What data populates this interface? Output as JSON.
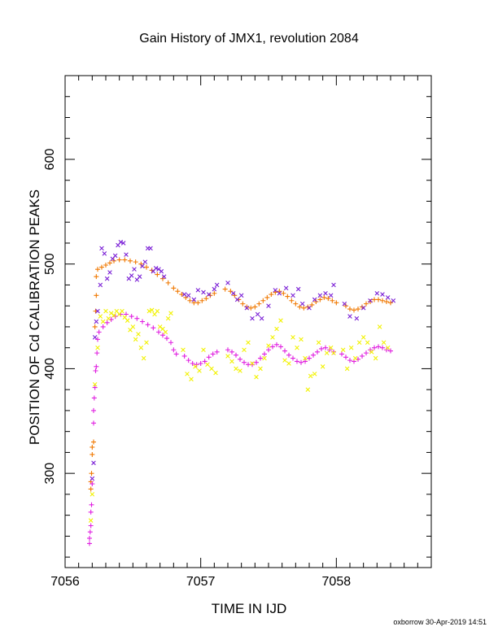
{
  "chart_data": {
    "type": "scatter",
    "title": "Gain History of JMX1, revolution 2084",
    "xlabel": "TIME IN IJD",
    "ylabel": "POSITION OF Cd CALIBRATION PEAKS",
    "xlim": [
      7056,
      7058.7
    ],
    "ylim": [
      210,
      680
    ],
    "x_ticks": [
      7056,
      7057,
      7058
    ],
    "y_ticks": [
      300,
      400,
      500,
      600
    ],
    "grid": false,
    "legend": "none",
    "series": [
      {
        "marker": "plus",
        "color": "#f07800",
        "points": [
          [
            7056.19,
            285
          ],
          [
            7056.19,
            292
          ],
          [
            7056.195,
            300
          ],
          [
            7056.2,
            318
          ],
          [
            7056.2,
            325
          ],
          [
            7056.21,
            330
          ],
          [
            7056.22,
            440
          ],
          [
            7056.225,
            455
          ],
          [
            7056.23,
            470
          ],
          [
            7056.23,
            488
          ],
          [
            7056.24,
            495
          ],
          [
            7056.27,
            497
          ],
          [
            7056.3,
            499
          ],
          [
            7056.33,
            501
          ],
          [
            7056.36,
            503
          ],
          [
            7056.4,
            504
          ],
          [
            7056.44,
            504
          ],
          [
            7056.48,
            503
          ],
          [
            7056.52,
            502
          ],
          [
            7056.56,
            500
          ],
          [
            7056.6,
            497
          ],
          [
            7056.64,
            494
          ],
          [
            7056.68,
            490
          ],
          [
            7056.72,
            486
          ],
          [
            7056.76,
            482
          ],
          [
            7056.8,
            477
          ],
          [
            7056.83,
            474
          ],
          [
            7056.86,
            471
          ],
          [
            7056.89,
            468
          ],
          [
            7056.92,
            465
          ],
          [
            7056.95,
            463
          ],
          [
            7056.98,
            463
          ],
          [
            7057.01,
            465
          ],
          [
            7057.04,
            467
          ],
          [
            7057.07,
            470
          ],
          [
            7057.1,
            472
          ],
          [
            7057.18,
            476
          ],
          [
            7057.22,
            474
          ],
          [
            7057.25,
            470
          ],
          [
            7057.28,
            466
          ],
          [
            7057.31,
            462
          ],
          [
            7057.34,
            459
          ],
          [
            7057.37,
            458
          ],
          [
            7057.4,
            459
          ],
          [
            7057.43,
            462
          ],
          [
            7057.46,
            465
          ],
          [
            7057.49,
            468
          ],
          [
            7057.52,
            471
          ],
          [
            7057.55,
            473
          ],
          [
            7057.58,
            474
          ],
          [
            7057.61,
            472
          ],
          [
            7057.64,
            469
          ],
          [
            7057.67,
            465
          ],
          [
            7057.7,
            462
          ],
          [
            7057.73,
            459
          ],
          [
            7057.76,
            458
          ],
          [
            7057.79,
            459
          ],
          [
            7057.82,
            461
          ],
          [
            7057.85,
            464
          ],
          [
            7057.88,
            466
          ],
          [
            7057.91,
            468
          ],
          [
            7057.94,
            467
          ],
          [
            7057.97,
            465
          ],
          [
            7058,
            463
          ],
          [
            7058.07,
            460
          ],
          [
            7058.1,
            457
          ],
          [
            7058.13,
            456
          ],
          [
            7058.16,
            457
          ],
          [
            7058.19,
            459
          ],
          [
            7058.22,
            462
          ],
          [
            7058.25,
            464
          ],
          [
            7058.28,
            466
          ],
          [
            7058.31,
            466
          ],
          [
            7058.34,
            465
          ],
          [
            7058.37,
            464
          ],
          [
            7058.4,
            463
          ]
        ]
      },
      {
        "marker": "cross",
        "color": "#7a1fd6",
        "points": [
          [
            7056.2,
            295
          ],
          [
            7056.21,
            310
          ],
          [
            7056.22,
            430
          ],
          [
            7056.23,
            445
          ],
          [
            7056.24,
            455
          ],
          [
            7056.26,
            480
          ],
          [
            7056.27,
            515
          ],
          [
            7056.29,
            510
          ],
          [
            7056.31,
            486
          ],
          [
            7056.33,
            492
          ],
          [
            7056.35,
            505
          ],
          [
            7056.37,
            508
          ],
          [
            7056.39,
            518
          ],
          [
            7056.41,
            521
          ],
          [
            7056.43,
            520
          ],
          [
            7056.45,
            509
          ],
          [
            7056.47,
            486
          ],
          [
            7056.49,
            489
          ],
          [
            7056.51,
            495
          ],
          [
            7056.53,
            485
          ],
          [
            7056.55,
            488
          ],
          [
            7056.57,
            498
          ],
          [
            7056.59,
            502
          ],
          [
            7056.61,
            515
          ],
          [
            7056.63,
            515
          ],
          [
            7056.65,
            493
          ],
          [
            7056.67,
            496
          ],
          [
            7056.69,
            495
          ],
          [
            7056.71,
            493
          ],
          [
            7056.73,
            488
          ],
          [
            7056.88,
            471
          ],
          [
            7056.91,
            470
          ],
          [
            7056.95,
            466
          ],
          [
            7056.98,
            475
          ],
          [
            7057.02,
            473
          ],
          [
            7057.06,
            471
          ],
          [
            7057.1,
            476
          ],
          [
            7057.12,
            480
          ],
          [
            7057.2,
            482
          ],
          [
            7057.24,
            472
          ],
          [
            7057.27,
            466
          ],
          [
            7057.3,
            470
          ],
          [
            7057.34,
            458
          ],
          [
            7057.38,
            448
          ],
          [
            7057.42,
            452
          ],
          [
            7057.45,
            448
          ],
          [
            7057.5,
            460
          ],
          [
            7057.55,
            475
          ],
          [
            7057.58,
            472
          ],
          [
            7057.63,
            477
          ],
          [
            7057.68,
            470
          ],
          [
            7057.72,
            476
          ],
          [
            7057.75,
            462
          ],
          [
            7057.8,
            458
          ],
          [
            7057.84,
            466
          ],
          [
            7057.88,
            470
          ],
          [
            7057.92,
            472
          ],
          [
            7057.96,
            470
          ],
          [
            7057.98,
            480
          ],
          [
            7058.06,
            462
          ],
          [
            7058.1,
            450
          ],
          [
            7058.15,
            448
          ],
          [
            7058.2,
            458
          ],
          [
            7058.25,
            465
          ],
          [
            7058.3,
            472
          ],
          [
            7058.34,
            471
          ],
          [
            7058.38,
            468
          ],
          [
            7058.42,
            465
          ]
        ]
      },
      {
        "marker": "plus",
        "color": "#e020e0",
        "points": [
          [
            7056.18,
            233
          ],
          [
            7056.18,
            238
          ],
          [
            7056.185,
            244
          ],
          [
            7056.19,
            250
          ],
          [
            7056.19,
            263
          ],
          [
            7056.195,
            270
          ],
          [
            7056.2,
            290
          ],
          [
            7056.21,
            348
          ],
          [
            7056.21,
            360
          ],
          [
            7056.215,
            372
          ],
          [
            7056.22,
            382
          ],
          [
            7056.225,
            398
          ],
          [
            7056.23,
            402
          ],
          [
            7056.235,
            415
          ],
          [
            7056.24,
            428
          ],
          [
            7056.25,
            435
          ],
          [
            7056.28,
            440
          ],
          [
            7056.31,
            444
          ],
          [
            7056.34,
            447
          ],
          [
            7056.37,
            450
          ],
          [
            7056.41,
            452
          ],
          [
            7056.45,
            452
          ],
          [
            7056.49,
            450
          ],
          [
            7056.53,
            448
          ],
          [
            7056.57,
            445
          ],
          [
            7056.61,
            442
          ],
          [
            7056.65,
            439
          ],
          [
            7056.69,
            435
          ],
          [
            7056.72,
            432
          ],
          [
            7056.75,
            429
          ],
          [
            7056.78,
            425
          ],
          [
            7056.8,
            418
          ],
          [
            7056.82,
            414
          ],
          [
            7056.88,
            412
          ],
          [
            7056.91,
            408
          ],
          [
            7056.94,
            405
          ],
          [
            7056.97,
            404
          ],
          [
            7057,
            405
          ],
          [
            7057.03,
            407
          ],
          [
            7057.06,
            411
          ],
          [
            7057.09,
            414
          ],
          [
            7057.12,
            416
          ],
          [
            7057.2,
            418
          ],
          [
            7057.23,
            416
          ],
          [
            7057.26,
            413
          ],
          [
            7057.29,
            409
          ],
          [
            7057.32,
            406
          ],
          [
            7057.35,
            404
          ],
          [
            7057.38,
            404
          ],
          [
            7057.41,
            406
          ],
          [
            7057.44,
            410
          ],
          [
            7057.47,
            414
          ],
          [
            7057.5,
            418
          ],
          [
            7057.53,
            421
          ],
          [
            7057.56,
            423
          ],
          [
            7057.59,
            421
          ],
          [
            7057.62,
            417
          ],
          [
            7057.65,
            413
          ],
          [
            7057.68,
            410
          ],
          [
            7057.71,
            407
          ],
          [
            7057.74,
            406
          ],
          [
            7057.77,
            407
          ],
          [
            7057.8,
            410
          ],
          [
            7057.83,
            413
          ],
          [
            7057.86,
            416
          ],
          [
            7057.89,
            419
          ],
          [
            7057.92,
            420
          ],
          [
            7057.95,
            418
          ],
          [
            7057.98,
            416
          ],
          [
            7058.04,
            414
          ],
          [
            7058.07,
            411
          ],
          [
            7058.1,
            408
          ],
          [
            7058.13,
            407
          ],
          [
            7058.16,
            409
          ],
          [
            7058.19,
            412
          ],
          [
            7058.22,
            415
          ],
          [
            7058.25,
            418
          ],
          [
            7058.28,
            420
          ],
          [
            7058.31,
            421
          ],
          [
            7058.34,
            420
          ],
          [
            7058.37,
            418
          ],
          [
            7058.4,
            417
          ]
        ]
      },
      {
        "marker": "cross",
        "color": "#f2f200",
        "points": [
          [
            7056.19,
            255
          ],
          [
            7056.2,
            280
          ],
          [
            7056.22,
            385
          ],
          [
            7056.24,
            420
          ],
          [
            7056.26,
            450
          ],
          [
            7056.28,
            445
          ],
          [
            7056.3,
            455
          ],
          [
            7056.32,
            448
          ],
          [
            7056.34,
            453
          ],
          [
            7056.36,
            451
          ],
          [
            7056.38,
            455
          ],
          [
            7056.4,
            452
          ],
          [
            7056.42,
            455
          ],
          [
            7056.44,
            449
          ],
          [
            7056.46,
            446
          ],
          [
            7056.48,
            437
          ],
          [
            7056.5,
            440
          ],
          [
            7056.52,
            428
          ],
          [
            7056.54,
            433
          ],
          [
            7056.56,
            420
          ],
          [
            7056.58,
            410
          ],
          [
            7056.6,
            425
          ],
          [
            7056.62,
            455
          ],
          [
            7056.64,
            456
          ],
          [
            7056.66,
            452
          ],
          [
            7056.68,
            455
          ],
          [
            7056.7,
            440
          ],
          [
            7056.72,
            438
          ],
          [
            7056.74,
            435
          ],
          [
            7056.76,
            448
          ],
          [
            7056.78,
            453
          ],
          [
            7056.87,
            418
          ],
          [
            7056.9,
            395
          ],
          [
            7056.93,
            390
          ],
          [
            7056.96,
            402
          ],
          [
            7056.99,
            398
          ],
          [
            7057.02,
            418
          ],
          [
            7057.05,
            404
          ],
          [
            7057.08,
            400
          ],
          [
            7057.11,
            396
          ],
          [
            7057.2,
            412
          ],
          [
            7057.23,
            407
          ],
          [
            7057.26,
            400
          ],
          [
            7057.29,
            398
          ],
          [
            7057.32,
            418
          ],
          [
            7057.35,
            425
          ],
          [
            7057.38,
            405
          ],
          [
            7057.41,
            392
          ],
          [
            7057.44,
            400
          ],
          [
            7057.47,
            410
          ],
          [
            7057.5,
            422
          ],
          [
            7057.53,
            430
          ],
          [
            7057.56,
            438
          ],
          [
            7057.59,
            446
          ],
          [
            7057.62,
            408
          ],
          [
            7057.65,
            405
          ],
          [
            7057.68,
            430
          ],
          [
            7057.71,
            420
          ],
          [
            7057.74,
            428
          ],
          [
            7057.77,
            410
          ],
          [
            7057.79,
            380
          ],
          [
            7057.81,
            393
          ],
          [
            7057.84,
            395
          ],
          [
            7057.87,
            425
          ],
          [
            7057.9,
            402
          ],
          [
            7057.93,
            415
          ],
          [
            7057.96,
            420
          ],
          [
            7057.98,
            415
          ],
          [
            7058.05,
            418
          ],
          [
            7058.08,
            400
          ],
          [
            7058.11,
            420
          ],
          [
            7058.14,
            410
          ],
          [
            7058.17,
            425
          ],
          [
            7058.2,
            430
          ],
          [
            7058.23,
            425
          ],
          [
            7058.26,
            416
          ],
          [
            7058.29,
            410
          ],
          [
            7058.32,
            440
          ],
          [
            7058.35,
            425
          ],
          [
            7058.38,
            420
          ]
        ]
      }
    ]
  },
  "footer": {
    "timestamp_label": "oxborrow 30-Apr-2019 14:51"
  }
}
